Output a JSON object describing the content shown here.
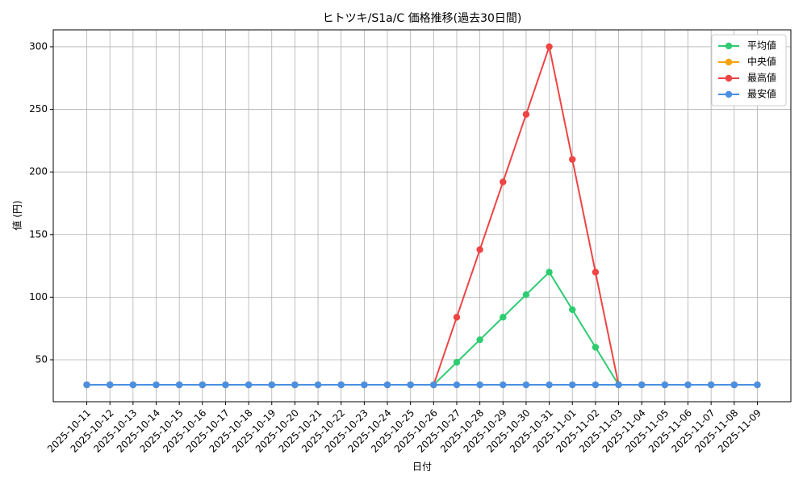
{
  "chart_data": {
    "type": "line",
    "title": "ヒトツキ/S1a/C 価格推移(過去30日間)",
    "x_label": "日付",
    "y_label": "値 (円)",
    "categories": [
      "2025-10-11",
      "2025-10-12",
      "2025-10-13",
      "2025-10-14",
      "2025-10-15",
      "2025-10-16",
      "2025-10-17",
      "2025-10-18",
      "2025-10-19",
      "2025-10-20",
      "2025-10-21",
      "2025-10-22",
      "2025-10-23",
      "2025-10-24",
      "2025-10-25",
      "2025-10-26",
      "2025-10-27",
      "2025-10-28",
      "2025-10-29",
      "2025-10-30",
      "2025-10-31",
      "2025-11-01",
      "2025-11-02",
      "2025-11-03",
      "2025-11-04",
      "2025-11-05",
      "2025-11-06",
      "2025-11-07",
      "2025-11-08",
      "2025-11-09"
    ],
    "series": [
      {
        "name": "平均値",
        "color": "#2ecc71",
        "values": [
          30,
          30,
          30,
          30,
          30,
          30,
          30,
          30,
          30,
          30,
          30,
          30,
          30,
          30,
          30,
          30,
          48,
          66,
          84,
          102,
          120,
          90,
          60,
          30,
          30,
          30,
          30,
          30,
          30,
          30
        ]
      },
      {
        "name": "中央値",
        "color": "#f5a30a",
        "values": [
          30,
          30,
          30,
          30,
          30,
          30,
          30,
          30,
          30,
          30,
          30,
          30,
          30,
          30,
          30,
          30,
          30,
          30,
          30,
          30,
          30,
          30,
          30,
          30,
          30,
          30,
          30,
          30,
          30,
          30
        ]
      },
      {
        "name": "最高値",
        "color": "#ef4444",
        "values": [
          30,
          30,
          30,
          30,
          30,
          30,
          30,
          30,
          30,
          30,
          30,
          30,
          30,
          30,
          30,
          30,
          84,
          138,
          192,
          246,
          300,
          210,
          120,
          30,
          30,
          30,
          30,
          30,
          30,
          30
        ]
      },
      {
        "name": "最安値",
        "color": "#4a90e2",
        "values": [
          30,
          30,
          30,
          30,
          30,
          30,
          30,
          30,
          30,
          30,
          30,
          30,
          30,
          30,
          30,
          30,
          30,
          30,
          30,
          30,
          30,
          30,
          30,
          30,
          30,
          30,
          30,
          30,
          30,
          30
        ]
      }
    ],
    "ylim": [
      16.5,
      313.5
    ],
    "yticks": [
      50,
      100,
      150,
      200,
      250,
      300
    ],
    "grid": true,
    "legend": "upper right"
  }
}
